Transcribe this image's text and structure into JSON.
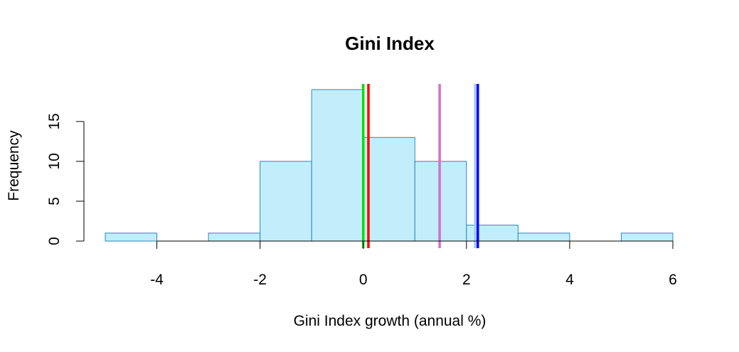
{
  "chart_data": {
    "type": "bar",
    "subtype": "histogram",
    "title": "Gini Index",
    "xlabel": "Gini Index growth (annual %)",
    "ylabel": "Frequency",
    "bins": [
      {
        "x0": -5,
        "x1": -4,
        "count": 1
      },
      {
        "x0": -4,
        "x1": -3,
        "count": 0
      },
      {
        "x0": -3,
        "x1": -2,
        "count": 1
      },
      {
        "x0": -2,
        "x1": -1,
        "count": 10
      },
      {
        "x0": -1,
        "x1": 0,
        "count": 19
      },
      {
        "x0": 0,
        "x1": 1,
        "count": 13
      },
      {
        "x0": 1,
        "x1": 2,
        "count": 10
      },
      {
        "x0": 2,
        "x1": 3,
        "count": 2
      },
      {
        "x0": 3,
        "x1": 4,
        "count": 1
      },
      {
        "x0": 4,
        "x1": 5,
        "count": 0
      },
      {
        "x0": 5,
        "x1": 6,
        "count": 1
      }
    ],
    "x_ticks": [
      -4,
      -2,
      0,
      2,
      4,
      6
    ],
    "y_ticks": [
      0,
      5,
      10,
      15
    ],
    "xlim": [
      -5,
      6
    ],
    "ylim": [
      0,
      19
    ],
    "grid": false,
    "bar_fill": "#c2eefc",
    "bar_stroke": "#2a88b7",
    "vertical_lines": [
      {
        "x": 0.0,
        "color": "#00e000"
      },
      {
        "x": 0.1,
        "color": "#ff0000"
      },
      {
        "x": 1.48,
        "color": "#d070d0"
      },
      {
        "x": 2.17,
        "color": "#a8c8f0"
      },
      {
        "x": 2.22,
        "color": "#0000ff"
      }
    ]
  }
}
